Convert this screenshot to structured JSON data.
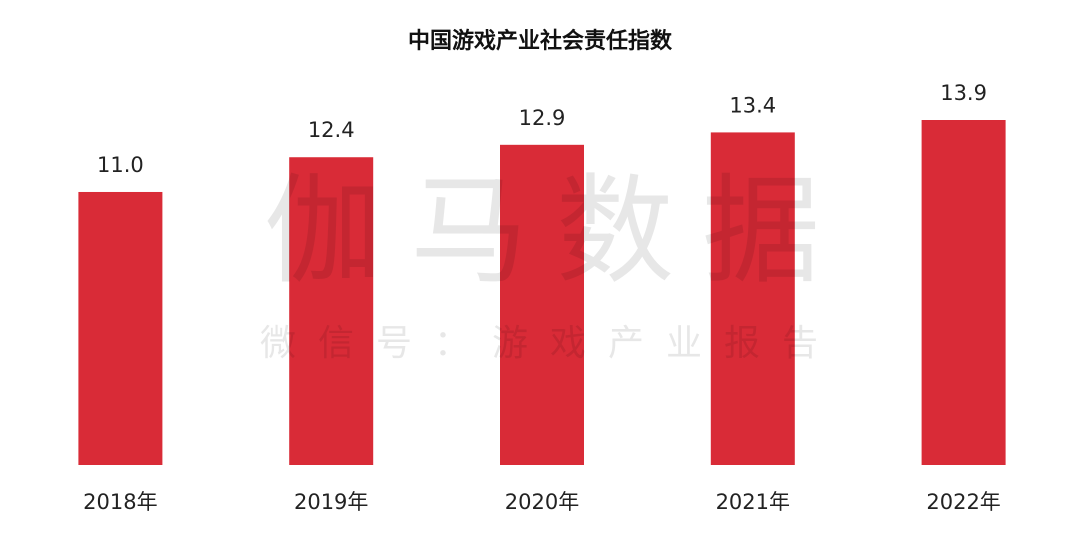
{
  "chart_data": {
    "type": "bar",
    "title": "中国游戏产业社会责任指数",
    "categories": [
      "2018年",
      "2019年",
      "2020年",
      "2021年",
      "2022年"
    ],
    "values": [
      11.0,
      12.4,
      12.9,
      13.4,
      13.9
    ],
    "value_labels": [
      "11.0",
      "12.4",
      "12.9",
      "13.4",
      "13.9"
    ],
    "color": "#d92b37",
    "watermark": "伽马数据",
    "watermark_subtitle": "微信号：游戏产业报告"
  }
}
